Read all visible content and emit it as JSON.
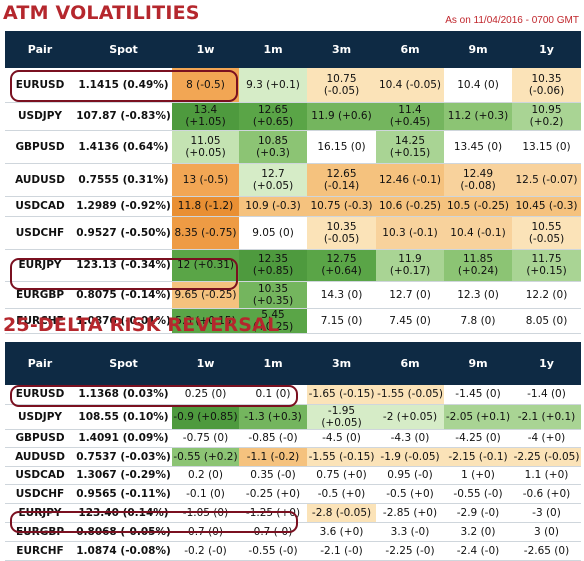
{
  "atm": {
    "title": "ATM VOLATILITIES",
    "as_of": "As on 11/04/2016 - 0700 GMT",
    "headers": [
      "Pair",
      "Spot",
      "1w",
      "1m",
      "3m",
      "6m",
      "9m",
      "1y"
    ],
    "rows": [
      {
        "pair": "EURUSD",
        "spot": "1.1415 (0.49%)",
        "cells": [
          {
            "t": "8 (-0.5)",
            "c": "#f2a654"
          },
          {
            "t": "9.3 (+0.1)",
            "c": "#d6ecc7"
          },
          {
            "t": "10.75 (-0.05)",
            "c": "#fbe3b8"
          },
          {
            "t": "10.4 (-0.05)",
            "c": "#fbe3b8"
          },
          {
            "t": "10.4 (0)",
            "c": "#ffffff"
          },
          {
            "t": "10.35 (-0.06)",
            "c": "#fbe3b8"
          }
        ]
      },
      {
        "pair": "USDJPY",
        "spot": "107.87 (-0.83%)",
        "cells": [
          {
            "t": "13.4 (+1.05)",
            "c": "#4e9a3e"
          },
          {
            "t": "12.65 (+0.65)",
            "c": "#5aa547"
          },
          {
            "t": "11.9 (+0.6)",
            "c": "#74b55e"
          },
          {
            "t": "11.4 (+0.45)",
            "c": "#74b55e"
          },
          {
            "t": "11.2 (+0.3)",
            "c": "#8cc474"
          },
          {
            "t": "10.95 (+0.2)",
            "c": "#a9d494"
          }
        ]
      },
      {
        "pair": "GBPUSD",
        "spot": "1.4136 (0.64%)",
        "cells": [
          {
            "t": "11.05 (+0.05)",
            "c": "#c4e3b2"
          },
          {
            "t": "10.85 (+0.3)",
            "c": "#8cc474"
          },
          {
            "t": "16.15 (0)",
            "c": "#ffffff"
          },
          {
            "t": "14.25 (+0.15)",
            "c": "#a9d494"
          },
          {
            "t": "13.45 (0)",
            "c": "#ffffff"
          },
          {
            "t": "13.15 (0)",
            "c": "#ffffff"
          }
        ]
      },
      {
        "pair": "AUDUSD",
        "spot": "0.7555 (0.31%)",
        "cells": [
          {
            "t": "13 (-0.5)",
            "c": "#f2a654"
          },
          {
            "t": "12.7 (+0.05)",
            "c": "#d6ecc7"
          },
          {
            "t": "12.65 (-0.14)",
            "c": "#f5c27e"
          },
          {
            "t": "12.46 (-0.1)",
            "c": "#f5c27e"
          },
          {
            "t": "12.49 (-0.08)",
            "c": "#f8d29c"
          },
          {
            "t": "12.5 (-0.07)",
            "c": "#f8d29c"
          }
        ]
      },
      {
        "pair": "USDCAD",
        "spot": "1.2989 (-0.92%)",
        "cells": [
          {
            "t": "11.8 (-1.2)",
            "c": "#e98f33"
          },
          {
            "t": "10.9 (-0.3)",
            "c": "#f5c27e"
          },
          {
            "t": "10.75 (-0.3)",
            "c": "#f5c27e"
          },
          {
            "t": "10.6 (-0.25)",
            "c": "#f5c27e"
          },
          {
            "t": "10.5 (-0.25)",
            "c": "#f5c27e"
          },
          {
            "t": "10.45 (-0.3)",
            "c": "#f5c27e"
          }
        ]
      },
      {
        "pair": "USDCHF",
        "spot": "0.9527 (-0.50%)",
        "cells": [
          {
            "t": "8.35 (-0.75)",
            "c": "#ee9b44"
          },
          {
            "t": "9.05 (0)",
            "c": "#ffffff"
          },
          {
            "t": "10.35 (-0.05)",
            "c": "#fbe3b8"
          },
          {
            "t": "10.3 (-0.1)",
            "c": "#f8d29c"
          },
          {
            "t": "10.4 (-0.1)",
            "c": "#f8d29c"
          },
          {
            "t": "10.55 (-0.05)",
            "c": "#fbe3b8"
          }
        ]
      },
      {
        "pair": "EURJPY",
        "spot": "123.13 (-0.34%)",
        "cells": [
          {
            "t": "12 (+0.31)",
            "c": "#5aa547"
          },
          {
            "t": "12.35 (+0.85)",
            "c": "#4e9a3e"
          },
          {
            "t": "12.75 (+0.64)",
            "c": "#5aa547"
          },
          {
            "t": "11.9 (+0.17)",
            "c": "#a9d494"
          },
          {
            "t": "11.85 (+0.24)",
            "c": "#8cc474"
          },
          {
            "t": "11.75 (+0.15)",
            "c": "#a9d494"
          }
        ]
      },
      {
        "pair": "EURGBP",
        "spot": "0.8075 (-0.14%)",
        "cells": [
          {
            "t": "9.65 (-0.25)",
            "c": "#f5c27e"
          },
          {
            "t": "10.35 (+0.35)",
            "c": "#74b55e"
          },
          {
            "t": "14.3 (0)",
            "c": "#ffffff"
          },
          {
            "t": "12.7 (0)",
            "c": "#ffffff"
          },
          {
            "t": "12.3 (0)",
            "c": "#ffffff"
          },
          {
            "t": "12.2 (0)",
            "c": "#ffffff"
          }
        ]
      },
      {
        "pair": "EURCHF",
        "spot": "1.0876 (-0.01%)",
        "cells": [
          {
            "t": "5.3 (+0.15)",
            "c": "#5aa547"
          },
          {
            "t": "5.45 (+0.25)",
            "c": "#5aa547"
          },
          {
            "t": "7.15 (0)",
            "c": "#ffffff"
          },
          {
            "t": "7.45 (0)",
            "c": "#ffffff"
          },
          {
            "t": "7.8 (0)",
            "c": "#ffffff"
          },
          {
            "t": "8.05 (0)",
            "c": "#ffffff"
          }
        ]
      }
    ]
  },
  "rr": {
    "title": "25-DELTA RISK REVERSAL",
    "headers": [
      "Pair",
      "Spot",
      "1w",
      "1m",
      "3m",
      "6m",
      "9m",
      "1y"
    ],
    "rows": [
      {
        "pair": "EURUSD",
        "spot": "1.1368 (0.03%)",
        "cells": [
          {
            "t": "0.25 (0)",
            "c": "#ffffff"
          },
          {
            "t": "0.1 (0)",
            "c": "#ffffff"
          },
          {
            "t": "-1.65 (-0.15)",
            "c": "#fbe3b8"
          },
          {
            "t": "-1.55 (-0.05)",
            "c": "#fbe3b8"
          },
          {
            "t": "-1.45 (0)",
            "c": "#ffffff"
          },
          {
            "t": "-1.4 (0)",
            "c": "#ffffff"
          }
        ]
      },
      {
        "pair": "USDJPY",
        "spot": "108.55 (0.10%)",
        "cells": [
          {
            "t": "-0.9 (+0.85)",
            "c": "#4e9a3e"
          },
          {
            "t": "-1.3 (+0.3)",
            "c": "#74b55e"
          },
          {
            "t": "-1.95 (+0.05)",
            "c": "#d6ecc7"
          },
          {
            "t": "-2 (+0.05)",
            "c": "#d6ecc7"
          },
          {
            "t": "-2.05 (+0.1)",
            "c": "#a9d494"
          },
          {
            "t": "-2.1 (+0.1)",
            "c": "#a9d494"
          }
        ]
      },
      {
        "pair": "GBPUSD",
        "spot": "1.4091 (0.09%)",
        "cells": [
          {
            "t": "-0.75 (0)",
            "c": "#ffffff"
          },
          {
            "t": "-0.85 (-0)",
            "c": "#ffffff"
          },
          {
            "t": "-4.5 (0)",
            "c": "#ffffff"
          },
          {
            "t": "-4.3 (0)",
            "c": "#ffffff"
          },
          {
            "t": "-4.25 (0)",
            "c": "#ffffff"
          },
          {
            "t": "-4 (+0)",
            "c": "#ffffff"
          }
        ]
      },
      {
        "pair": "AUDUSD",
        "spot": "0.7537 (-0.03%)",
        "cells": [
          {
            "t": "-0.55 (+0.2)",
            "c": "#8cc474"
          },
          {
            "t": "-1.1 (-0.2)",
            "c": "#f5c27e"
          },
          {
            "t": "-1.55 (-0.15)",
            "c": "#fbe3b8"
          },
          {
            "t": "-1.9 (-0.05)",
            "c": "#fbe3b8"
          },
          {
            "t": "-2.15 (-0.1)",
            "c": "#fbe3b8"
          },
          {
            "t": "-2.25 (-0.05)",
            "c": "#fbe3b8"
          }
        ]
      },
      {
        "pair": "USDCAD",
        "spot": "1.3067 (-0.29%)",
        "cells": [
          {
            "t": "0.2 (0)",
            "c": "#ffffff"
          },
          {
            "t": "0.35 (-0)",
            "c": "#ffffff"
          },
          {
            "t": "0.75 (+0)",
            "c": "#ffffff"
          },
          {
            "t": "0.95 (-0)",
            "c": "#ffffff"
          },
          {
            "t": "1 (+0)",
            "c": "#ffffff"
          },
          {
            "t": "1.1 (+0)",
            "c": "#ffffff"
          }
        ]
      },
      {
        "pair": "USDCHF",
        "spot": "0.9565 (-0.11%)",
        "cells": [
          {
            "t": "-0.1 (0)",
            "c": "#ffffff"
          },
          {
            "t": "-0.25 (+0)",
            "c": "#ffffff"
          },
          {
            "t": "-0.5 (+0)",
            "c": "#ffffff"
          },
          {
            "t": "-0.5 (+0)",
            "c": "#ffffff"
          },
          {
            "t": "-0.55 (-0)",
            "c": "#ffffff"
          },
          {
            "t": "-0.6 (+0)",
            "c": "#ffffff"
          }
        ]
      },
      {
        "pair": "EURJPY",
        "spot": "123.40 (0.14%)",
        "cells": [
          {
            "t": "-1.05 (0)",
            "c": "#ffffff"
          },
          {
            "t": "-1.25 (+0)",
            "c": "#ffffff"
          },
          {
            "t": "-2.8 (-0.05)",
            "c": "#fbe3b8"
          },
          {
            "t": "-2.85 (+0)",
            "c": "#ffffff"
          },
          {
            "t": "-2.9 (-0)",
            "c": "#ffffff"
          },
          {
            "t": "-3 (0)",
            "c": "#ffffff"
          }
        ]
      },
      {
        "pair": "EURGBP",
        "spot": "0.8068 (-0.05%)",
        "cells": [
          {
            "t": "0.7 (0)",
            "c": "#ffffff"
          },
          {
            "t": "0.7 (-0)",
            "c": "#ffffff"
          },
          {
            "t": "3.6 (+0)",
            "c": "#ffffff"
          },
          {
            "t": "3.3 (-0)",
            "c": "#ffffff"
          },
          {
            "t": "3.2 (0)",
            "c": "#ffffff"
          },
          {
            "t": "3 (0)",
            "c": "#ffffff"
          }
        ]
      },
      {
        "pair": "EURCHF",
        "spot": "1.0874 (-0.08%)",
        "cells": [
          {
            "t": "-0.2 (-0)",
            "c": "#ffffff"
          },
          {
            "t": "-0.55 (-0)",
            "c": "#ffffff"
          },
          {
            "t": "-2.1 (-0)",
            "c": "#ffffff"
          },
          {
            "t": "-2.25 (-0)",
            "c": "#ffffff"
          },
          {
            "t": "-2.4 (-0)",
            "c": "#ffffff"
          },
          {
            "t": "-2.65 (0)",
            "c": "#ffffff"
          }
        ]
      }
    ]
  },
  "highlights": {
    "color": "#7a1020",
    "pairs": [
      "EURUSD",
      "EURGBP"
    ]
  }
}
